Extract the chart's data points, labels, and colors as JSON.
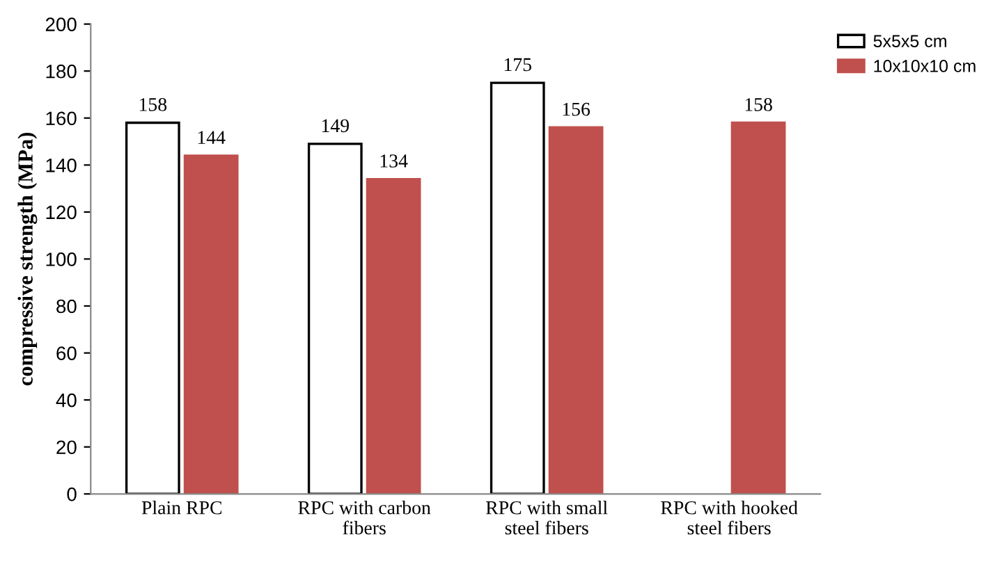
{
  "chart_data": {
    "type": "bar",
    "ylabel": "compressive strength (MPa)",
    "categories": [
      "Plain RPC",
      "RPC with carbon\nfibers",
      "RPC with small\nsteel fibers",
      "RPC with hooked\nsteel fibers"
    ],
    "series": [
      {
        "name": "5x5x5 cm",
        "color": "#ffffff",
        "values": [
          158,
          149,
          175,
          null
        ]
      },
      {
        "name": "10x10x10 cm",
        "color": "#c0504d",
        "values": [
          144,
          134,
          156,
          158
        ]
      }
    ],
    "ylim": [
      0,
      200
    ],
    "yticks": [
      0,
      20,
      40,
      60,
      80,
      100,
      120,
      140,
      160,
      180,
      200
    ],
    "data_labels": true,
    "grid": false,
    "legend": "top right"
  }
}
